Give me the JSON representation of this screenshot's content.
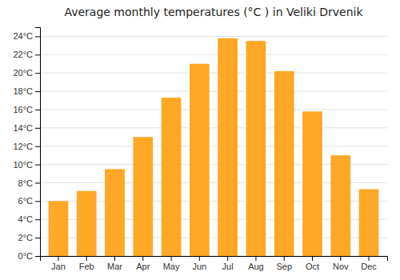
{
  "chart_data": {
    "type": "bar",
    "title": "Average monthly temperatures (°C ) in Veliki Drvenik",
    "categories": [
      "Jan",
      "Feb",
      "Mar",
      "Apr",
      "May",
      "Jun",
      "Jul",
      "Aug",
      "Sep",
      "Oct",
      "Nov",
      "Dec"
    ],
    "values": [
      6.0,
      7.1,
      9.5,
      13.0,
      17.3,
      21.0,
      23.8,
      23.5,
      20.2,
      15.8,
      11.0,
      7.3
    ],
    "color": "#FFA726",
    "ylim": [
      0,
      25
    ],
    "yticks": [
      {
        "value": 0,
        "label": "0°C"
      },
      {
        "value": 2,
        "label": "2°C"
      },
      {
        "value": 4,
        "label": "4°C"
      },
      {
        "value": 6,
        "label": "6°C"
      },
      {
        "value": 8,
        "label": "8°C"
      },
      {
        "value": 10,
        "label": "10°C"
      },
      {
        "value": 12,
        "label": "12°C"
      },
      {
        "value": 14,
        "label": "14°C"
      },
      {
        "value": 16,
        "label": "16°C"
      },
      {
        "value": 18,
        "label": "18°C"
      },
      {
        "value": 20,
        "label": "20°C"
      },
      {
        "value": 22,
        "label": "22°C"
      },
      {
        "value": 24,
        "label": "24°C"
      }
    ],
    "grid": true
  }
}
